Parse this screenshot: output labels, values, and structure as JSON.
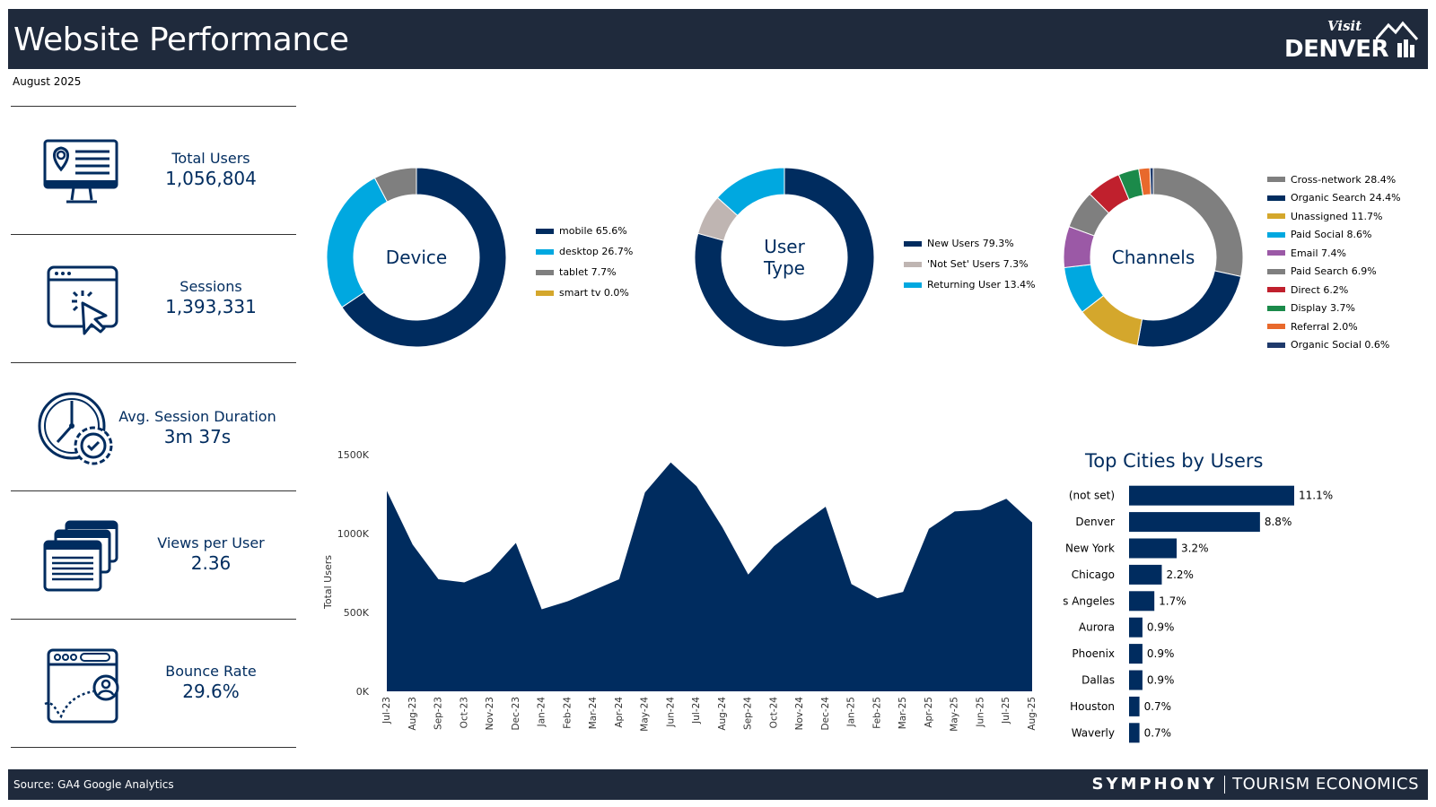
{
  "header": {
    "title": "Website Performance",
    "logo_visit": "Visit",
    "logo_denver": "DENVER"
  },
  "date": "August 2025",
  "kpis": [
    {
      "label": "Total Users",
      "value": "1,056,804",
      "icon": "monitor-location-icon"
    },
    {
      "label": "Sessions",
      "value": "1,393,331",
      "icon": "browser-click-icon"
    },
    {
      "label": "Avg. Session Duration",
      "value": "3m 37s",
      "icon": "clock-gear-icon"
    },
    {
      "label": "Views per User",
      "value": "2.36",
      "icon": "stacked-windows-icon"
    },
    {
      "label": "Bounce Rate",
      "value": "29.6%",
      "icon": "browser-user-bounce-icon"
    }
  ],
  "colors": {
    "navy": "#002c5f",
    "cyan": "#00a8e0",
    "gray": "#7f7f7f",
    "gold": "#d4a72c",
    "silver": "#bfb5b2",
    "purple": "#9b59a6",
    "red": "#c0202d",
    "green": "#1b8a4a",
    "orange": "#e8692c",
    "header_bg": "#1f2a3c"
  },
  "chart_data": [
    {
      "type": "pie",
      "title": "Device",
      "labels": [
        "mobile 65.6%",
        "desktop 26.7%",
        "tablet 7.7%",
        "smart tv 0.0%"
      ],
      "values": [
        65.6,
        26.7,
        7.7,
        0.0
      ],
      "colors": [
        "#002c5f",
        "#00a8e0",
        "#7f7f7f",
        "#d4a72c"
      ]
    },
    {
      "type": "pie",
      "title": "User Type",
      "title_lines": [
        "User",
        "Type"
      ],
      "labels": [
        "New Users 79.3%",
        "'Not Set' Users 7.3%",
        "Returning User 13.4%"
      ],
      "values": [
        79.3,
        7.3,
        13.4
      ],
      "colors": [
        "#002c5f",
        "#bfb5b2",
        "#00a8e0"
      ]
    },
    {
      "type": "pie",
      "title": "Channels",
      "labels": [
        "Cross-network 28.4%",
        "Organic Search 24.4%",
        "Unassigned 11.7%",
        "Paid Social 8.6%",
        "Email 7.4%",
        "Paid Search 6.9%",
        "Direct 6.2%",
        "Display 3.7%",
        "Referral 2.0%",
        "Organic Social 0.6%"
      ],
      "values": [
        28.4,
        24.4,
        11.7,
        8.6,
        7.4,
        6.9,
        6.2,
        3.7,
        2.0,
        0.6
      ],
      "colors": [
        "#7f7f7f",
        "#002c5f",
        "#d4a72c",
        "#00a8e0",
        "#9b59a6",
        "#7f7f7f",
        "#c0202d",
        "#1b8a4a",
        "#e8692c",
        "#1f3a6b"
      ]
    },
    {
      "type": "area",
      "title": "",
      "ylabel": "Total Users",
      "xlabel": "",
      "ylim": [
        0,
        1500000
      ],
      "yticks": [
        "0K",
        "500K",
        "1000K",
        "1500K"
      ],
      "ytick_values": [
        0,
        500000,
        1000000,
        1500000
      ],
      "x": [
        "Jul-23",
        "Aug-23",
        "Sep-23",
        "Oct-23",
        "Nov-23",
        "Dec-23",
        "Jan-24",
        "Feb-24",
        "Mar-24",
        "Apr-24",
        "May-24",
        "Jun-24",
        "Jul-24",
        "Aug-24",
        "Sep-24",
        "Oct-24",
        "Nov-24",
        "Dec-24",
        "Jan-25",
        "Feb-25",
        "Mar-25",
        "Apr-25",
        "May-25",
        "Jun-25",
        "Jul-25",
        "Aug-25"
      ],
      "values": [
        1270000,
        930000,
        710000,
        690000,
        760000,
        940000,
        520000,
        570000,
        640000,
        710000,
        1260000,
        1450000,
        1300000,
        1040000,
        740000,
        920000,
        1050000,
        1170000,
        680000,
        590000,
        630000,
        1030000,
        1140000,
        1150000,
        1220000,
        1070000
      ],
      "color": "#002c5f"
    },
    {
      "type": "bar",
      "title": "Top Cities by Users",
      "categories": [
        "(not set)",
        "Denver",
        "New York",
        "Chicago",
        "Los Angeles",
        "Aurora",
        "Phoenix",
        "Dallas",
        "Houston",
        "Waverly"
      ],
      "values": [
        11.1,
        8.8,
        3.2,
        2.2,
        1.7,
        0.9,
        0.9,
        0.9,
        0.7,
        0.7
      ],
      "value_labels": [
        "11.1%",
        "8.8%",
        "3.2%",
        "2.2%",
        "1.7%",
        "0.9%",
        "0.9%",
        "0.9%",
        "0.7%",
        "0.7%"
      ],
      "color": "#002c5f"
    }
  ],
  "footer": {
    "source": "Source: GA4 Google Analytics",
    "brand_symphony": "SYMPHONY",
    "brand_te": "TOURISM ECONOMICS"
  }
}
